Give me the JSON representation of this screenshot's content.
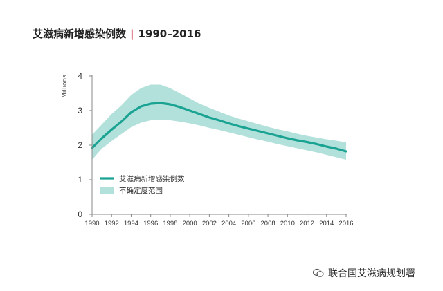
{
  "header": {
    "title": "艾滋病新增感染例数",
    "separator": "|",
    "period": "1990–2016"
  },
  "chart_data": {
    "type": "line",
    "title": "艾滋病新增感染例数 | 1990–2016",
    "ylabel": "Millions",
    "xlabel": "",
    "ylim": [
      0,
      4
    ],
    "xlim": [
      1990,
      2016
    ],
    "yticks": [
      0,
      1,
      2,
      3,
      4
    ],
    "xticks": [
      1990,
      1992,
      1994,
      1996,
      1998,
      2000,
      2002,
      2004,
      2006,
      2008,
      2010,
      2012,
      2014,
      2016
    ],
    "grid": false,
    "legend_position": "inside-left",
    "x": [
      1990,
      1991,
      1992,
      1993,
      1994,
      1995,
      1996,
      1997,
      1998,
      1999,
      2000,
      2001,
      2002,
      2003,
      2004,
      2005,
      2006,
      2007,
      2008,
      2009,
      2010,
      2011,
      2012,
      2013,
      2014,
      2015,
      2016
    ],
    "series": [
      {
        "name": "艾滋病新增感染例数",
        "kind": "line",
        "color": "#1aa393",
        "values": [
          1.92,
          2.2,
          2.45,
          2.68,
          2.95,
          3.12,
          3.2,
          3.22,
          3.18,
          3.1,
          3.0,
          2.9,
          2.8,
          2.72,
          2.63,
          2.55,
          2.48,
          2.41,
          2.34,
          2.27,
          2.2,
          2.14,
          2.09,
          2.03,
          1.96,
          1.9,
          1.82
        ]
      },
      {
        "name": "不确定度范围",
        "kind": "band",
        "color": "#b2e0da",
        "upper": [
          2.3,
          2.6,
          2.9,
          3.15,
          3.45,
          3.65,
          3.75,
          3.75,
          3.65,
          3.5,
          3.35,
          3.2,
          3.08,
          2.97,
          2.86,
          2.77,
          2.69,
          2.61,
          2.53,
          2.46,
          2.4,
          2.33,
          2.27,
          2.22,
          2.17,
          2.13,
          2.08
        ],
        "lower": [
          1.58,
          1.9,
          2.12,
          2.32,
          2.52,
          2.65,
          2.72,
          2.73,
          2.72,
          2.68,
          2.63,
          2.57,
          2.5,
          2.44,
          2.37,
          2.3,
          2.23,
          2.16,
          2.1,
          2.03,
          1.97,
          1.91,
          1.85,
          1.79,
          1.72,
          1.65,
          1.58
        ]
      }
    ]
  },
  "watermark": {
    "text": "联合国艾滋病规划署",
    "icon": "wechat-icon"
  }
}
